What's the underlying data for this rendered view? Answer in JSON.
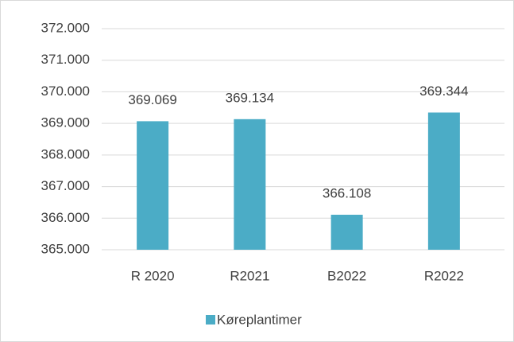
{
  "chart_data": {
    "type": "bar",
    "categories": [
      "R 2020",
      "R2021",
      "B2022",
      "R2022"
    ],
    "series": [
      {
        "name": "Køreplantimer",
        "color": "#4bacc6",
        "values": [
          369069,
          369134,
          366108,
          369344
        ],
        "value_labels": [
          "369.069",
          "369.134",
          "366.108",
          "369.344"
        ]
      }
    ],
    "ylim": [
      365000,
      372000
    ],
    "yticks": [
      {
        "value": 365000,
        "label": "365.000"
      },
      {
        "value": 366000,
        "label": "366.000"
      },
      {
        "value": 367000,
        "label": "367.000"
      },
      {
        "value": 368000,
        "label": "368.000"
      },
      {
        "value": 369000,
        "label": "369.000"
      },
      {
        "value": 370000,
        "label": "370.000"
      },
      {
        "value": 371000,
        "label": "371.000"
      },
      {
        "value": 372000,
        "label": "372.000"
      }
    ],
    "grid": true,
    "legend": "bottom"
  }
}
